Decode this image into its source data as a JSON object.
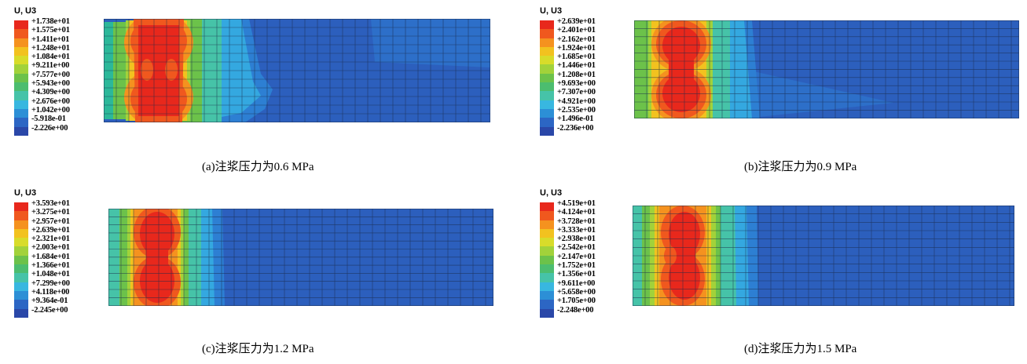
{
  "panels": [
    {
      "legend_title": "U, U3",
      "legend_values": [
        "+1.738e+01",
        "+1.575e+01",
        "+1.411e+01",
        "+1.248e+01",
        "+1.084e+01",
        "+9.211e+00",
        "+7.577e+00",
        "+5.943e+00",
        "+4.309e+00",
        "+2.676e+00",
        "+1.042e+00",
        "-5.918e-01",
        "-2.226e+00"
      ],
      "caption": "(a)注浆压力为0.6 MPa"
    },
    {
      "legend_title": "U, U3",
      "legend_values": [
        "+2.639e+01",
        "+2.401e+01",
        "+2.162e+01",
        "+1.924e+01",
        "+1.685e+01",
        "+1.446e+01",
        "+1.208e+01",
        "+9.693e+00",
        "+7.307e+00",
        "+4.921e+00",
        "+2.535e+00",
        "+1.496e-01",
        "-2.236e+00"
      ],
      "caption": "(b)注浆压力为0.9 MPa"
    },
    {
      "legend_title": "U, U3",
      "legend_values": [
        "+3.593e+01",
        "+3.275e+01",
        "+2.957e+01",
        "+2.639e+01",
        "+2.321e+01",
        "+2.003e+01",
        "+1.684e+01",
        "+1.366e+01",
        "+1.048e+01",
        "+7.299e+00",
        "+4.118e+00",
        "+9.364e-01",
        "-2.245e+00"
      ],
      "caption": "(c)注浆压力为1.2 MPa"
    },
    {
      "legend_title": "U, U3",
      "legend_values": [
        "+4.519e+01",
        "+4.124e+01",
        "+3.728e+01",
        "+3.333e+01",
        "+2.938e+01",
        "+2.542e+01",
        "+2.147e+01",
        "+1.752e+01",
        "+1.356e+01",
        "+9.611e+00",
        "+5.658e+00",
        "+1.705e+00",
        "-2.248e+00"
      ],
      "caption": "(d)注浆压力为1.5 MPa"
    }
  ],
  "legend_colors": [
    "#e8281c",
    "#f0581e",
    "#f5921f",
    "#f2c21f",
    "#d8dc2a",
    "#a2d23a",
    "#6cc24a",
    "#4cbd6f",
    "#46c3a8",
    "#38b7e0",
    "#2c8fd6",
    "#2c66c4",
    "#2a47a8"
  ]
}
